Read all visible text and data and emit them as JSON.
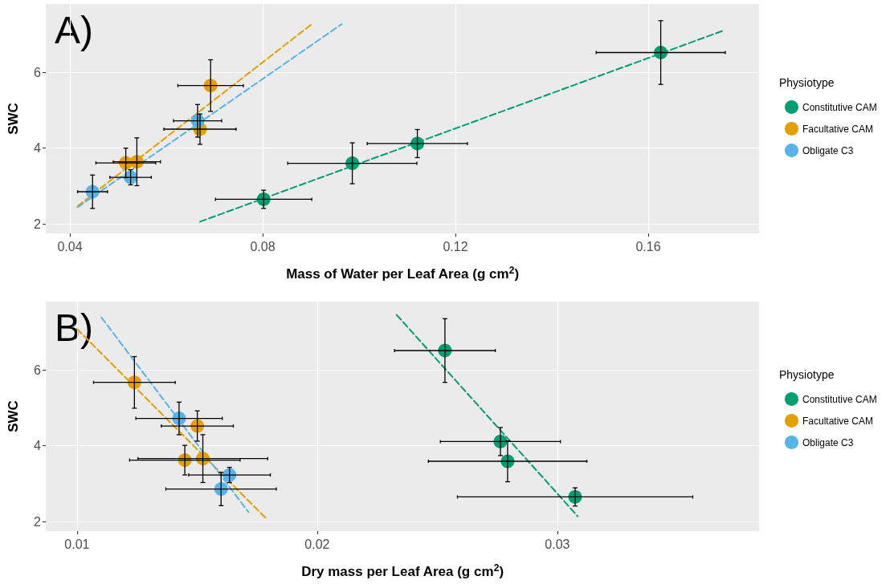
{
  "chart_data": [
    {
      "type": "scatter",
      "xlabel": "Mass of Water per Leaf Area (g cm$^{2}$)",
      "ylabel": "SWC",
      "legend_title": "Physiotype",
      "annotations": [
        "A)"
      ],
      "xlim": [
        0.035,
        0.183
      ],
      "xticks": [
        0.04,
        0.08,
        0.12,
        0.16
      ],
      "ylim": [
        1.75,
        7.8
      ],
      "yticks": [
        2,
        4,
        6
      ],
      "grid": true,
      "legend": "right",
      "marker": "circle",
      "series": [
        {
          "name": "Constitutive CAM",
          "color": "#009e73",
          "x": [
            0.0802,
            0.0986,
            0.1121,
            0.1626
          ],
          "values": [
            2.65,
            3.6,
            4.12,
            6.52
          ],
          "errors": [
            0.24,
            0.54,
            0.37,
            0.84
          ],
          "xerrors": [
            0.01,
            0.0134,
            0.0104,
            0.0134
          ]
        },
        {
          "name": "Facultative CAM",
          "color": "#e69f00",
          "x": [
            0.0516,
            0.0539,
            0.067,
            0.0692
          ],
          "values": [
            3.61,
            3.64,
            4.5,
            5.65
          ],
          "errors": [
            0.39,
            0.63,
            0.4,
            0.68
          ],
          "xerrors": [
            0.0062,
            0.0049,
            0.0075,
            0.0068
          ]
        },
        {
          "name": "Obligate C3",
          "color": "#56b4e9",
          "x": [
            0.0447,
            0.0526,
            0.0665
          ],
          "values": [
            2.85,
            3.23,
            4.72
          ],
          "errors": [
            0.44,
            0.2,
            0.43
          ],
          "xerrors": [
            0.0031,
            0.0043,
            0.005
          ]
        },
        {
          "type": "line",
          "color": "#009e73",
          "line_style": "dashed",
          "marker": "none",
          "x": [
            0.067,
            0.1754
          ],
          "values": [
            2.06,
            7.09
          ]
        },
        {
          "type": "line",
          "color": "#e69f00",
          "line_style": "dashed",
          "marker": "none",
          "x": [
            0.0416,
            0.0905
          ],
          "values": [
            2.47,
            7.3
          ]
        },
        {
          "type": "line",
          "color": "#56b4e9",
          "line_style": "dashed",
          "marker": "none",
          "x": [
            0.0416,
            0.0964
          ],
          "values": [
            2.44,
            7.27
          ]
        }
      ]
    },
    {
      "type": "scatter",
      "xlabel": "Dry mass per Leaf Area (g cm$^{2}$)",
      "ylabel": "SWC",
      "legend_title": "Physiotype",
      "annotations": [
        "B)"
      ],
      "xlim": [
        0.0087,
        0.0384
      ],
      "xticks": [
        0.01,
        0.02,
        0.03
      ],
      "ylim": [
        1.75,
        7.8
      ],
      "yticks": [
        2,
        4,
        6
      ],
      "grid": true,
      "legend": "right",
      "marker": "circle",
      "series": [
        {
          "name": "Constitutive CAM",
          "color": "#009e73",
          "x": [
            0.03074,
            0.02793,
            0.02763,
            0.02532
          ],
          "values": [
            2.65,
            3.59,
            4.11,
            6.51
          ],
          "errors": [
            0.24,
            0.54,
            0.37,
            0.84
          ],
          "xerrors": [
            0.0049,
            0.0033,
            0.0025,
            0.0021
          ]
        },
        {
          "name": "Facultative CAM",
          "color": "#e69f00",
          "x": [
            0.01449,
            0.01524,
            0.01501,
            0.01239
          ],
          "values": [
            3.62,
            3.66,
            4.52,
            5.67
          ],
          "errors": [
            0.39,
            0.63,
            0.4,
            0.68
          ],
          "xerrors": [
            0.0023,
            0.0027,
            0.0015,
            0.0017
          ]
        },
        {
          "name": "Obligate C3",
          "color": "#56b4e9",
          "x": [
            0.016,
            0.01635,
            0.01425
          ],
          "values": [
            2.86,
            3.23,
            4.72
          ],
          "errors": [
            0.44,
            0.2,
            0.43
          ],
          "xerrors": [
            0.0023,
            0.0017,
            0.0018
          ]
        },
        {
          "type": "line",
          "color": "#009e73",
          "line_style": "dashed",
          "marker": "none",
          "x": [
            0.02331,
            0.03085
          ],
          "values": [
            7.45,
            2.14
          ]
        },
        {
          "type": "line",
          "color": "#e69f00",
          "line_style": "dashed",
          "marker": "none",
          "x": [
            0.01,
            0.01788
          ],
          "values": [
            7.08,
            2.08
          ]
        },
        {
          "type": "line",
          "color": "#56b4e9",
          "line_style": "dashed",
          "marker": "none",
          "x": [
            0.01102,
            0.01714
          ],
          "values": [
            7.38,
            2.25
          ]
        }
      ]
    }
  ]
}
